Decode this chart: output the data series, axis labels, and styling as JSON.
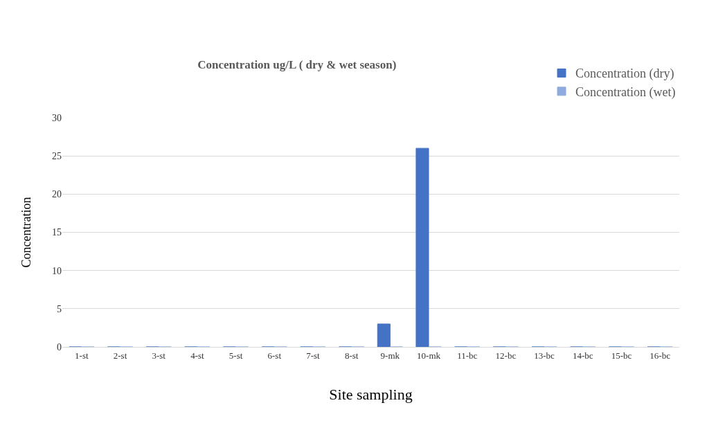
{
  "chart_data": {
    "type": "bar",
    "title": "Concentration ug/L ( dry & wet season)",
    "xlabel": "Site sampling",
    "ylabel": "Concentration",
    "categories": [
      "1-st",
      "2-st",
      "3-st",
      "4-st",
      "5-st",
      "6-st",
      "7-st",
      "8-st",
      "9-mk",
      "10-mk",
      "11-bc",
      "12-bc",
      "13-bc",
      "14-bc",
      "15-bc",
      "16-bc"
    ],
    "series": [
      {
        "name": "Concentration (dry)",
        "color": "#4472c4",
        "values": [
          0,
          0,
          0,
          0,
          0,
          0,
          0,
          0,
          3,
          26,
          0,
          0,
          0,
          0,
          0,
          0
        ]
      },
      {
        "name": "Concentration (wet)",
        "color": "#8faadc",
        "values": [
          0,
          0,
          0,
          0,
          0,
          0,
          0,
          0,
          0,
          0,
          0,
          0,
          0,
          0,
          0,
          0
        ]
      }
    ],
    "ylim": [
      0,
      30
    ],
    "yticks": [
      0,
      5,
      10,
      15,
      20,
      25,
      30
    ],
    "grid": "y",
    "legend": "top right"
  }
}
